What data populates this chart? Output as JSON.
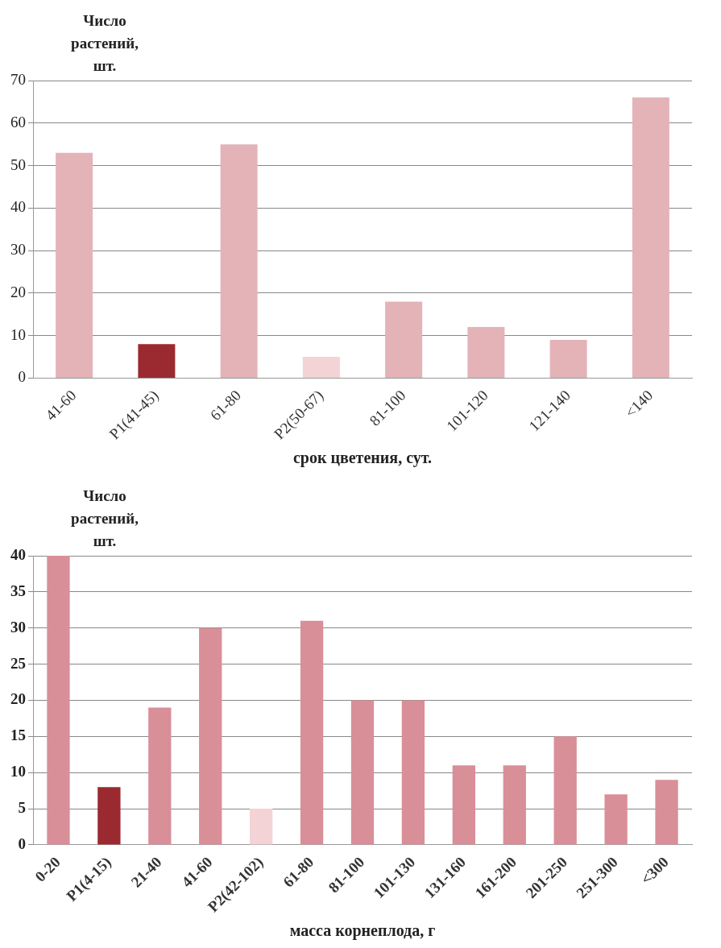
{
  "chart_data": [
    {
      "type": "bar",
      "ylabel": "Число растений, шт.",
      "xlabel": "срок цветения, сут.",
      "categories": [
        "41-60",
        "P1(41-45)",
        "61-80",
        "P2(50-67)",
        "81-100",
        "101-120",
        "121-140",
        "<140"
      ],
      "values": [
        53,
        8,
        55,
        5,
        18,
        12,
        9,
        66
      ],
      "colors": [
        "#e3b3b8",
        "#9b2a30",
        "#e3b3b8",
        "#f3d3d6",
        "#e3b3b8",
        "#e3b3b8",
        "#e3b3b8",
        "#e3b3b8"
      ],
      "ylim": [
        0,
        70
      ],
      "yticks": [
        0,
        10,
        20,
        30,
        40,
        50,
        60,
        70
      ],
      "grid": "y",
      "legend": false
    },
    {
      "type": "bar",
      "ylabel": "Число растений, шт.",
      "xlabel": "масса корнеплода, г",
      "categories": [
        "0-20",
        "P1(4-15)",
        "21-40",
        "41-60",
        "P2(42-102)",
        "61-80",
        "81-100",
        "101-130",
        "131-160",
        "161-200",
        "201-250",
        "251-300",
        "<300"
      ],
      "values": [
        40,
        8,
        19,
        30,
        5,
        31,
        20,
        20,
        11,
        11,
        15,
        7,
        9
      ],
      "colors": [
        "#d98f98",
        "#9b2a30",
        "#d98f98",
        "#d98f98",
        "#f3d3d6",
        "#d98f98",
        "#d98f98",
        "#d98f98",
        "#d98f98",
        "#d98f98",
        "#d98f98",
        "#d98f98",
        "#d98f98"
      ],
      "ylim": [
        0,
        40
      ],
      "yticks": [
        0,
        5,
        10,
        15,
        20,
        25,
        30,
        35,
        40
      ],
      "grid": "y",
      "legend": false
    }
  ]
}
